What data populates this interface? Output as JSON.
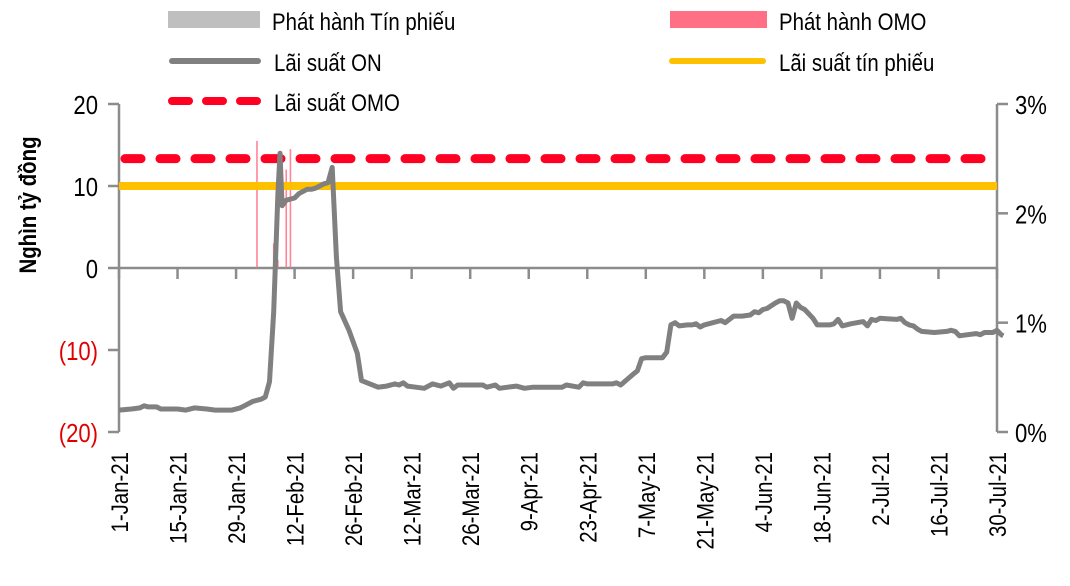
{
  "chart_data": {
    "type": "line",
    "title": "",
    "ylabel": "Nghìn tỷ đồng",
    "y2label": "",
    "xlabel": "",
    "ylim": [
      -20,
      20
    ],
    "y2lim": [
      0,
      3
    ],
    "yticks": [
      "20",
      "10",
      "0",
      "(10)",
      "(20)"
    ],
    "ytick_values": [
      20,
      10,
      0,
      -10,
      -20
    ],
    "y2ticks": [
      "3%",
      "2%",
      "1%",
      "0%"
    ],
    "y2tick_values": [
      3,
      2,
      1,
      0
    ],
    "xticks": [
      "1-Jan-21",
      "15-Jan-21",
      "29-Jan-21",
      "12-Feb-21",
      "26-Feb-21",
      "12-Mar-21",
      "26-Mar-21",
      "9-Apr-21",
      "23-Apr-21",
      "7-May-21",
      "21-May-21",
      "4-Jun-21",
      "18-Jun-21",
      "2-Jul-21",
      "16-Jul-21",
      "30-Jul-21"
    ],
    "grid": false,
    "legend_position": "top",
    "legend": [
      {
        "label": "Phát hành Tín phiếu",
        "type": "bar",
        "color": "#bfbfbf"
      },
      {
        "label": "Phát hành OMO",
        "type": "bar",
        "color": "#ff6f86"
      },
      {
        "label": "Lãi suất ON",
        "type": "line",
        "color": "#808080"
      },
      {
        "label": "Lãi suất tín phiếu",
        "type": "line",
        "color": "#ffc000"
      },
      {
        "label": "Lãi suất OMO",
        "type": "dashed",
        "color": "#ff0022"
      }
    ],
    "series": [
      {
        "name": "Lãi suất OMO",
        "axis": "right",
        "unit": "%",
        "constant": 2.5,
        "color": "#ff0022"
      },
      {
        "name": "Lãi suất tín phiếu",
        "axis": "right",
        "unit": "%",
        "constant": 2.25,
        "color": "#ffc000"
      },
      {
        "name": "Phát hành OMO",
        "axis": "left",
        "unit": "nghìn tỷ đồng",
        "color": "#ff6f86",
        "points": [
          {
            "day": 33,
            "value": 15.5
          },
          {
            "day": 37,
            "value": 3
          },
          {
            "day": 38,
            "value": 1
          },
          {
            "day": 40,
            "value": 12
          },
          {
            "day": 41,
            "value": 14.5
          }
        ]
      },
      {
        "name": "Phát hành Tín phiếu",
        "axis": "left",
        "unit": "nghìn tỷ đồng",
        "color": "#bfbfbf",
        "points": []
      },
      {
        "name": "Lãi suất ON",
        "axis": "right",
        "unit": "%",
        "color": "#808080",
        "points": [
          [
            0,
            0.2
          ],
          [
            3,
            0.21
          ],
          [
            5,
            0.22
          ],
          [
            6,
            0.24
          ],
          [
            7,
            0.23
          ],
          [
            9,
            0.23
          ],
          [
            10,
            0.21
          ],
          [
            14,
            0.21
          ],
          [
            16,
            0.2
          ],
          [
            18,
            0.22
          ],
          [
            21,
            0.21
          ],
          [
            23,
            0.2
          ],
          [
            27,
            0.2
          ],
          [
            29,
            0.22
          ],
          [
            30,
            0.24
          ],
          [
            32,
            0.28
          ],
          [
            34,
            0.3
          ],
          [
            35,
            0.32
          ],
          [
            36,
            0.46
          ],
          [
            37,
            1.1
          ],
          [
            38,
            2.18
          ],
          [
            38.5,
            2.55
          ],
          [
            39,
            2.07
          ],
          [
            40,
            2.12
          ],
          [
            42,
            2.14
          ],
          [
            43,
            2.18
          ],
          [
            45,
            2.22
          ],
          [
            46,
            2.22
          ],
          [
            47,
            2.23
          ],
          [
            48,
            2.25
          ],
          [
            49,
            2.27
          ],
          [
            50,
            2.28
          ],
          [
            51,
            2.42
          ],
          [
            52,
            1.6
          ],
          [
            53,
            1.1
          ],
          [
            55,
            0.93
          ],
          [
            57,
            0.72
          ],
          [
            58,
            0.47
          ],
          [
            60,
            0.44
          ],
          [
            62,
            0.41
          ],
          [
            64,
            0.42
          ],
          [
            66,
            0.44
          ],
          [
            67,
            0.43
          ],
          [
            68,
            0.45
          ],
          [
            69,
            0.42
          ],
          [
            71,
            0.41
          ],
          [
            73,
            0.4
          ],
          [
            75,
            0.44
          ],
          [
            77,
            0.42
          ],
          [
            79,
            0.45
          ],
          [
            80,
            0.4
          ],
          [
            81,
            0.43
          ],
          [
            85,
            0.43
          ],
          [
            87,
            0.43
          ],
          [
            88,
            0.41
          ],
          [
            90,
            0.43
          ],
          [
            91,
            0.4
          ],
          [
            93,
            0.41
          ],
          [
            95,
            0.42
          ],
          [
            97,
            0.4
          ],
          [
            99,
            0.41
          ],
          [
            103,
            0.41
          ],
          [
            106,
            0.41
          ],
          [
            107,
            0.43
          ],
          [
            110,
            0.41
          ],
          [
            111,
            0.45
          ],
          [
            112,
            0.44
          ],
          [
            115,
            0.44
          ],
          [
            118,
            0.44
          ],
          [
            119,
            0.45
          ],
          [
            120,
            0.43
          ],
          [
            123,
            0.53
          ],
          [
            124,
            0.56
          ],
          [
            125,
            0.67
          ],
          [
            126,
            0.68
          ],
          [
            130,
            0.68
          ],
          [
            131,
            0.73
          ],
          [
            132,
            0.98
          ],
          [
            133,
            1.0
          ],
          [
            134,
            0.97
          ],
          [
            136,
            0.98
          ],
          [
            137,
            0.98
          ],
          [
            138,
            0.99
          ],
          [
            139,
            0.96
          ],
          [
            140,
            0.98
          ],
          [
            144,
            1.02
          ],
          [
            145,
            1.0
          ],
          [
            147,
            1.06
          ],
          [
            149,
            1.06
          ],
          [
            151,
            1.07
          ],
          [
            152,
            1.1
          ],
          [
            153,
            1.09
          ],
          [
            154,
            1.12
          ],
          [
            155,
            1.13
          ],
          [
            157,
            1.18
          ],
          [
            158,
            1.2
          ],
          [
            159,
            1.2
          ],
          [
            160,
            1.18
          ],
          [
            161,
            1.04
          ],
          [
            162,
            1.18
          ],
          [
            163,
            1.14
          ],
          [
            164,
            1.12
          ],
          [
            166,
            1.04
          ],
          [
            167,
            0.98
          ],
          [
            170,
            0.98
          ],
          [
            171,
            0.99
          ],
          [
            172,
            1.03
          ],
          [
            173,
            0.97
          ],
          [
            175,
            0.99
          ],
          [
            178,
            1.01
          ],
          [
            179,
            0.97
          ],
          [
            180,
            1.03
          ],
          [
            181,
            1.02
          ],
          [
            182,
            1.04
          ],
          [
            186,
            1.03
          ],
          [
            187,
            1.04
          ],
          [
            188,
            1.0
          ],
          [
            189,
            0.98
          ],
          [
            190,
            0.97
          ],
          [
            191,
            0.94
          ],
          [
            192,
            0.92
          ],
          [
            195,
            0.91
          ],
          [
            198,
            0.92
          ],
          [
            199,
            0.93
          ],
          [
            200,
            0.92
          ],
          [
            201,
            0.88
          ],
          [
            203,
            0.89
          ],
          [
            205,
            0.9
          ],
          [
            206,
            0.89
          ],
          [
            207,
            0.91
          ],
          [
            209,
            0.91
          ],
          [
            210,
            0.93
          ],
          [
            211,
            0.89
          ],
          [
            211.5,
            0.88
          ]
        ]
      }
    ]
  }
}
